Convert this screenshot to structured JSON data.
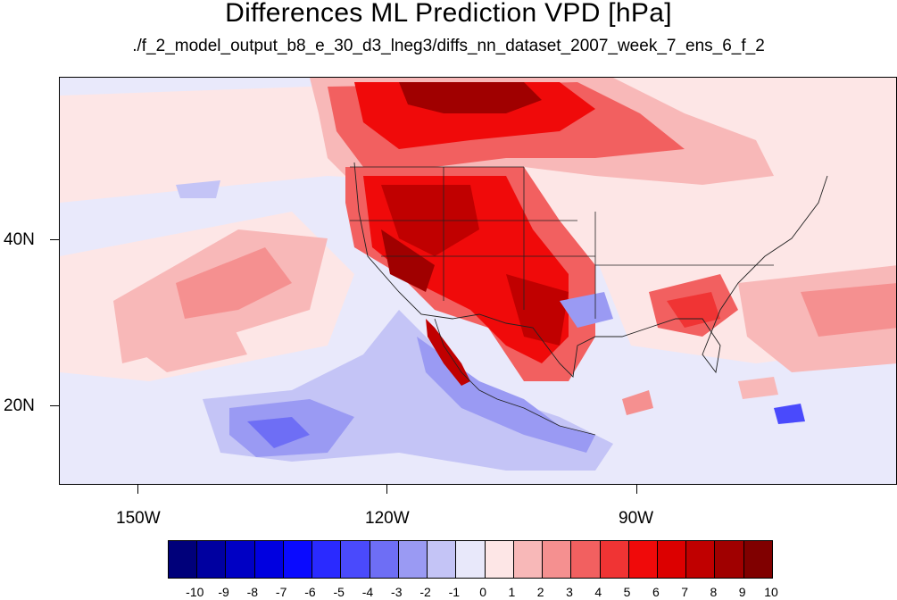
{
  "title": "Differences ML Prediction VPD [hPa]",
  "subtitle": "./f_2_model_output_b8_e_30_d3_lneg3/diffs_nn_dataset_2007_week_7_ens_6_f_2",
  "lon_labels": [
    "150W",
    "120W",
    "90W"
  ],
  "lat_labels": [
    "40N",
    "20N"
  ],
  "colorbar": {
    "labels": [
      "-10",
      "-9",
      "-8",
      "-7",
      "-6",
      "-5",
      "-4",
      "-3",
      "-2",
      "-1",
      "0",
      "1",
      "2",
      "3",
      "4",
      "5",
      "6",
      "7",
      "8",
      "9",
      "10"
    ],
    "colors": [
      "#00007a",
      "#0000a0",
      "#0000c4",
      "#0000e0",
      "#0a0aff",
      "#2a2aff",
      "#4a4afc",
      "#6e6ef5",
      "#9a9af3",
      "#c4c4f6",
      "#e8e8fa",
      "#fde6e6",
      "#f8b8b8",
      "#f59090",
      "#f26060",
      "#f03434",
      "#f00a0a",
      "#dc0000",
      "#c00000",
      "#a00000",
      "#800000"
    ]
  }
}
